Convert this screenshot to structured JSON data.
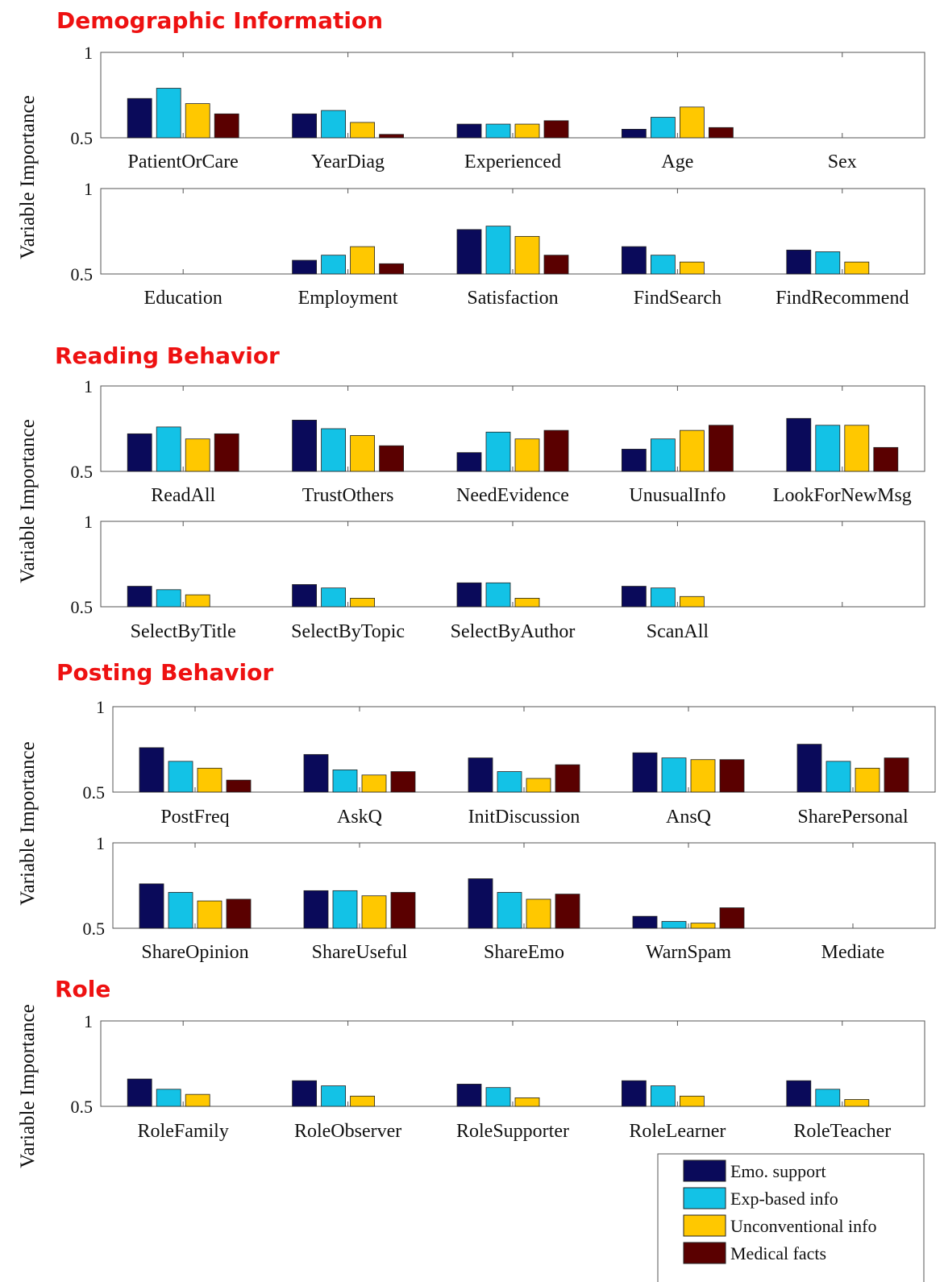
{
  "y_axis_label": "Variable Importance",
  "colors": {
    "emo": "#0a0a5a",
    "exp": "#13c2e6",
    "unconv": "#ffc800",
    "med": "#5a0000",
    "section_title": "#ee1111"
  },
  "legend": [
    {
      "key": "emo",
      "label": "Emo. support"
    },
    {
      "key": "exp",
      "label": "Exp-based info"
    },
    {
      "key": "unconv",
      "label": "Unconventional info"
    },
    {
      "key": "med",
      "label": "Medical facts"
    }
  ],
  "sections": [
    {
      "title": "Demographic Information",
      "panels": [
        0,
        1
      ]
    },
    {
      "title": "Reading Behavior",
      "panels": [
        2,
        3
      ]
    },
    {
      "title": "Posting Behavior",
      "panels": [
        4,
        5
      ]
    },
    {
      "title": "Role",
      "panels": [
        6
      ]
    }
  ],
  "chart_data": [
    {
      "type": "bar",
      "section": "Demographic Information",
      "ylim": [
        0.5,
        1
      ],
      "yticks": [
        "1",
        "0.5"
      ],
      "categories": [
        "PatientOrCare",
        "YearDiag",
        "Experienced",
        "Age",
        "Sex"
      ],
      "series": [
        {
          "name": "Emo. support",
          "values": [
            0.73,
            0.64,
            0.58,
            0.55,
            null
          ]
        },
        {
          "name": "Exp-based info",
          "values": [
            0.79,
            0.66,
            0.58,
            0.62,
            null
          ]
        },
        {
          "name": "Unconventional info",
          "values": [
            0.7,
            0.59,
            0.58,
            0.68,
            null
          ]
        },
        {
          "name": "Medical facts",
          "values": [
            0.64,
            0.52,
            0.6,
            0.56,
            null
          ]
        }
      ]
    },
    {
      "type": "bar",
      "section": "Demographic Information",
      "ylim": [
        0.5,
        1
      ],
      "yticks": [
        "1",
        "0.5"
      ],
      "categories": [
        "Education",
        "Employment",
        "Satisfaction",
        "FindSearch",
        "FindRecommend"
      ],
      "series": [
        {
          "name": "Emo. support",
          "values": [
            null,
            0.58,
            0.76,
            0.66,
            0.64
          ]
        },
        {
          "name": "Exp-based info",
          "values": [
            null,
            0.61,
            0.78,
            0.61,
            0.63
          ]
        },
        {
          "name": "Unconventional info",
          "values": [
            null,
            0.66,
            0.72,
            0.57,
            0.57
          ]
        },
        {
          "name": "Medical facts",
          "values": [
            null,
            0.56,
            0.61,
            null,
            null
          ]
        }
      ]
    },
    {
      "type": "bar",
      "section": "Reading Behavior",
      "ylim": [
        0.5,
        1
      ],
      "yticks": [
        "1",
        "0.5"
      ],
      "categories": [
        "ReadAll",
        "TrustOthers",
        "NeedEvidence",
        "UnusualInfo",
        "LookForNewMsg"
      ],
      "series": [
        {
          "name": "Emo. support",
          "values": [
            0.72,
            0.8,
            0.61,
            0.63,
            0.81
          ]
        },
        {
          "name": "Exp-based info",
          "values": [
            0.76,
            0.75,
            0.73,
            0.69,
            0.77
          ]
        },
        {
          "name": "Unconventional info",
          "values": [
            0.69,
            0.71,
            0.69,
            0.74,
            0.77
          ]
        },
        {
          "name": "Medical facts",
          "values": [
            0.72,
            0.65,
            0.74,
            0.77,
            0.64
          ]
        }
      ]
    },
    {
      "type": "bar",
      "section": "Reading Behavior",
      "ylim": [
        0.5,
        1
      ],
      "yticks": [
        "1",
        "0.5"
      ],
      "categories": [
        "SelectByTitle",
        "SelectByTopic",
        "SelectByAuthor",
        "ScanAll",
        ""
      ],
      "series": [
        {
          "name": "Emo. support",
          "values": [
            0.62,
            0.63,
            0.64,
            0.62,
            null
          ]
        },
        {
          "name": "Exp-based info",
          "values": [
            0.6,
            0.61,
            0.64,
            0.61,
            null
          ]
        },
        {
          "name": "Unconventional info",
          "values": [
            0.57,
            0.55,
            0.55,
            0.56,
            null
          ]
        },
        {
          "name": "Medical facts",
          "values": [
            null,
            null,
            null,
            null,
            null
          ]
        }
      ]
    },
    {
      "type": "bar",
      "section": "Posting Behavior",
      "ylim": [
        0.5,
        1
      ],
      "yticks": [
        "1",
        "0.5"
      ],
      "categories": [
        "PostFreq",
        "AskQ",
        "InitDiscussion",
        "AnsQ",
        "SharePersonal"
      ],
      "series": [
        {
          "name": "Emo. support",
          "values": [
            0.76,
            0.72,
            0.7,
            0.73,
            0.78
          ]
        },
        {
          "name": "Exp-based info",
          "values": [
            0.68,
            0.63,
            0.62,
            0.7,
            0.68
          ]
        },
        {
          "name": "Unconventional info",
          "values": [
            0.64,
            0.6,
            0.58,
            0.69,
            0.64
          ]
        },
        {
          "name": "Medical facts",
          "values": [
            0.57,
            0.62,
            0.66,
            0.69,
            0.7
          ]
        }
      ]
    },
    {
      "type": "bar",
      "section": "Posting Behavior",
      "ylim": [
        0.5,
        1
      ],
      "yticks": [
        "1",
        "0.5"
      ],
      "categories": [
        "ShareOpinion",
        "ShareUseful",
        "ShareEmo",
        "WarnSpam",
        "Mediate"
      ],
      "series": [
        {
          "name": "Emo. support",
          "values": [
            0.76,
            0.72,
            0.79,
            0.57,
            null
          ]
        },
        {
          "name": "Exp-based info",
          "values": [
            0.71,
            0.72,
            0.71,
            0.54,
            null
          ]
        },
        {
          "name": "Unconventional info",
          "values": [
            0.66,
            0.69,
            0.67,
            0.53,
            null
          ]
        },
        {
          "name": "Medical facts",
          "values": [
            0.67,
            0.71,
            0.7,
            0.62,
            null
          ]
        }
      ]
    },
    {
      "type": "bar",
      "section": "Role",
      "ylim": [
        0.5,
        1
      ],
      "yticks": [
        "1",
        "0.5"
      ],
      "categories": [
        "RoleFamily",
        "RoleObserver",
        "RoleSupporter",
        "RoleLearner",
        "RoleTeacher"
      ],
      "series": [
        {
          "name": "Emo. support",
          "values": [
            0.66,
            0.65,
            0.63,
            0.65,
            0.65
          ]
        },
        {
          "name": "Exp-based info",
          "values": [
            0.6,
            0.62,
            0.61,
            0.62,
            0.6
          ]
        },
        {
          "name": "Unconventional info",
          "values": [
            0.57,
            0.56,
            0.55,
            0.56,
            0.54
          ]
        },
        {
          "name": "Medical facts",
          "values": [
            null,
            null,
            null,
            null,
            null
          ]
        }
      ]
    }
  ]
}
